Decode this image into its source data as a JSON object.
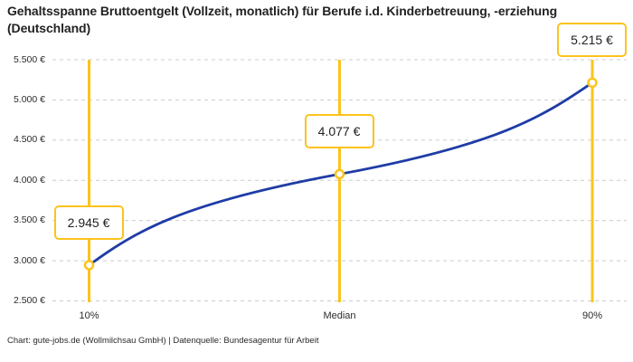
{
  "chart_data": {
    "type": "line",
    "title": "Gehaltsspanne Bruttoentgelt (Vollzeit, monatlich) für Berufe i.d. Kinderbetreuung, -erziehung (Deutschland)",
    "points": [
      {
        "label": "10%",
        "value": 2945,
        "value_label": "2.945 €"
      },
      {
        "label": "Median",
        "value": 4077,
        "value_label": "4.077 €"
      },
      {
        "label": "90%",
        "value": 5215,
        "value_label": "5.215 €"
      }
    ],
    "x_ticks": [
      "10%",
      "Median",
      "90%"
    ],
    "y_ticks": [
      "5.500 €",
      "5.000 €",
      "4.500 €",
      "4.000 €",
      "3.500 €",
      "3.000 €",
      "2.500 €"
    ],
    "ylim": [
      2500,
      5500
    ],
    "grid": "horizontal-dashed",
    "legend": "none",
    "colors": {
      "line": "#1f3ca6",
      "accent": "#fcc31d",
      "grid": "#cccccc",
      "text": "#222222"
    }
  },
  "footer": {
    "text": "Chart: gute-jobs.de (Wollmilchsau GmbH) | Datenquelle: Bundesagentur für Arbeit"
  }
}
